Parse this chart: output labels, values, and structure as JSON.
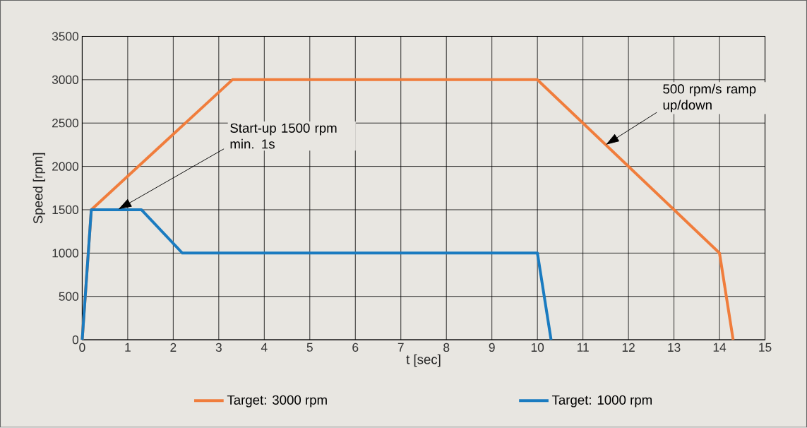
{
  "chart_data": {
    "type": "line",
    "xlabel": "t [sec]",
    "ylabel": "Speed [rpm]",
    "xlim": [
      0,
      15
    ],
    "ylim": [
      0,
      3500
    ],
    "xticks": [
      0,
      1,
      2,
      3,
      4,
      5,
      6,
      7,
      8,
      9,
      10,
      11,
      12,
      13,
      14,
      15
    ],
    "yticks": [
      0,
      500,
      1000,
      1500,
      2000,
      2500,
      3000,
      3500
    ],
    "grid": true,
    "legend": "bottom",
    "marker": "none",
    "line_style": "solid",
    "series": [
      {
        "name": "Target: 3000 rpm",
        "color": "#f07d3c",
        "x": [
          0,
          0.2,
          3.3,
          10,
          14,
          14.3
        ],
        "values": [
          0,
          1500,
          3000,
          3000,
          1000,
          0
        ]
      },
      {
        "name": "Target: 1000 rpm",
        "color": "#1a7bc0",
        "x": [
          0,
          0.2,
          1.3,
          2.2,
          10,
          10.3
        ],
        "values": [
          0,
          1500,
          1500,
          1000,
          1000,
          0
        ]
      }
    ],
    "annotations": [
      "Start-up 1500 rpm min. 1s",
      "500 rpm/s ramp up/down"
    ]
  }
}
